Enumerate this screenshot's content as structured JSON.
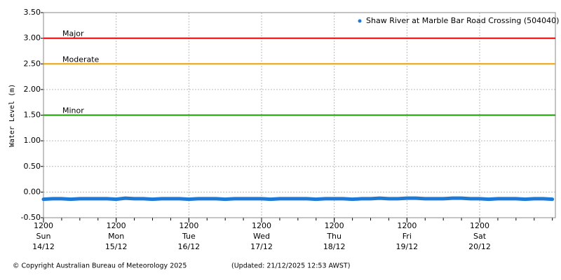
{
  "chart_data": {
    "type": "line",
    "y_label": "Water Level (m)",
    "series": [
      {
        "name": "Shaw River at Marble Bar Road Crossing (504040)",
        "color": "#1f7ad6",
        "x": [
          0,
          3,
          6,
          9,
          12,
          15,
          18,
          21,
          24,
          27,
          30,
          33,
          36,
          39,
          42,
          45,
          48,
          51,
          54,
          57,
          60,
          63,
          66,
          69,
          72,
          75,
          78,
          81,
          84,
          87,
          90,
          93,
          96,
          99,
          102,
          105,
          108,
          111,
          114,
          117,
          120,
          123,
          126,
          129,
          132,
          135,
          138,
          141,
          144,
          147,
          150,
          153,
          156,
          159,
          162,
          165,
          168
        ],
        "values": [
          -0.14,
          -0.13,
          -0.13,
          -0.14,
          -0.13,
          -0.13,
          -0.13,
          -0.13,
          -0.14,
          -0.12,
          -0.13,
          -0.13,
          -0.14,
          -0.13,
          -0.13,
          -0.13,
          -0.14,
          -0.13,
          -0.13,
          -0.13,
          -0.14,
          -0.13,
          -0.13,
          -0.13,
          -0.13,
          -0.14,
          -0.13,
          -0.13,
          -0.13,
          -0.13,
          -0.14,
          -0.13,
          -0.13,
          -0.13,
          -0.14,
          -0.13,
          -0.13,
          -0.12,
          -0.13,
          -0.13,
          -0.12,
          -0.12,
          -0.13,
          -0.13,
          -0.13,
          -0.12,
          -0.12,
          -0.13,
          -0.13,
          -0.14,
          -0.13,
          -0.13,
          -0.13,
          -0.14,
          -0.13,
          -0.13,
          -0.14
        ]
      }
    ],
    "thresholds": [
      {
        "name": "Major",
        "value": 3,
        "color": "#e00000"
      },
      {
        "name": "Moderate",
        "value": 2.5,
        "color": "#f5a000"
      },
      {
        "name": "Minor",
        "value": 1.5,
        "color": "#1a9a00"
      }
    ],
    "xlim": [
      0,
      169
    ],
    "xticks": [
      {
        "value": 0,
        "time": "1200",
        "day": "Sun",
        "date": "14/12"
      },
      {
        "value": 24,
        "time": "1200",
        "day": "Mon",
        "date": "15/12"
      },
      {
        "value": 48,
        "time": "1200",
        "day": "Tue",
        "date": "16/12"
      },
      {
        "value": 72,
        "time": "1200",
        "day": "Wed",
        "date": "17/12"
      },
      {
        "value": 96,
        "time": "1200",
        "day": "Thu",
        "date": "18/12"
      },
      {
        "value": 120,
        "time": "1200",
        "day": "Fri",
        "date": "19/12"
      },
      {
        "value": 144,
        "time": "1200",
        "day": "Sat",
        "date": "20/12"
      }
    ],
    "minor_xtick_step": 6,
    "ylim": [
      -0.5,
      3.5
    ],
    "yticks": [
      {
        "value": -0.5,
        "label": "-0.50"
      },
      {
        "value": 0,
        "label": "0.00"
      },
      {
        "value": 0.5,
        "label": "0.50"
      },
      {
        "value": 1,
        "label": "1.00"
      },
      {
        "value": 1.5,
        "label": "1.50"
      },
      {
        "value": 2,
        "label": "2.00"
      },
      {
        "value": 2.5,
        "label": "2.50"
      },
      {
        "value": 3,
        "label": "3.00"
      },
      {
        "value": 3.5,
        "label": "3.50"
      }
    ],
    "grid": true,
    "legend": "top-right"
  },
  "footer": {
    "copyright": "© Copyright Australian Bureau of Meteorology 2025",
    "updated": "(Updated: 21/12/2025 12:53 AWST)"
  }
}
